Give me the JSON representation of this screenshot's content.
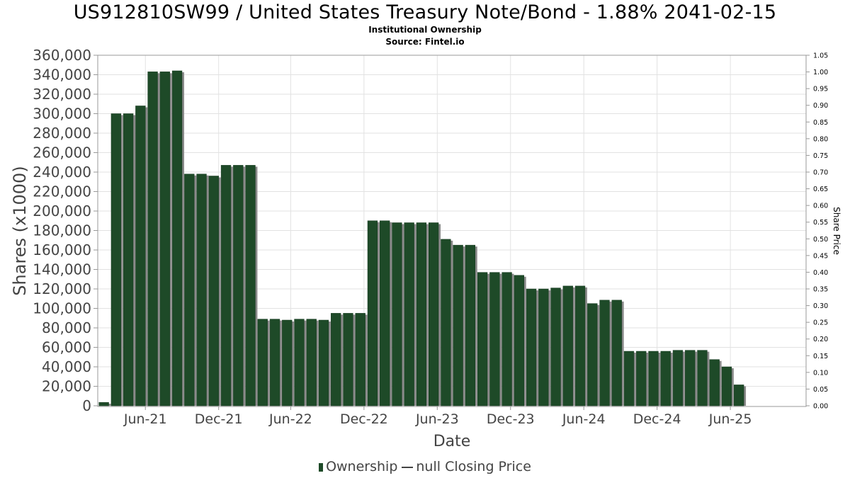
{
  "chart_data": {
    "type": "bar",
    "title": "US912810SW99 / United States Treasury Note/Bond - 1.88% 2041-02-15",
    "subtitle_lines": [
      "Institutional Ownership",
      "Source: Fintel.io"
    ],
    "xlabel": "Date",
    "ylabel": "Shares (x1000)",
    "y2label": "Share Price",
    "ylim": [
      0,
      360000
    ],
    "y2lim": [
      0,
      1.05
    ],
    "yticks": [
      "0",
      "20,000",
      "40,000",
      "60,000",
      "80,000",
      "100,000",
      "120,000",
      "140,000",
      "160,000",
      "180,000",
      "200,000",
      "220,000",
      "240,000",
      "260,000",
      "280,000",
      "300,000",
      "320,000",
      "340,000",
      "360,000"
    ],
    "y2ticks": [
      "0.00",
      "0.05",
      "0.10",
      "0.15",
      "0.20",
      "0.25",
      "0.30",
      "0.35",
      "0.40",
      "0.45",
      "0.50",
      "0.55",
      "0.60",
      "0.65",
      "0.70",
      "0.75",
      "0.80",
      "0.85",
      "0.90",
      "0.95",
      "1.00",
      "1.05"
    ],
    "x_ticks": [
      {
        "label": "Jun-21",
        "x": 3.9
      },
      {
        "label": "Dec-21",
        "x": 9.9
      },
      {
        "label": "Jun-22",
        "x": 15.8
      },
      {
        "label": "Dec-22",
        "x": 21.8
      },
      {
        "label": "Jun-23",
        "x": 27.8
      },
      {
        "label": "Dec-23",
        "x": 33.8
      },
      {
        "label": "Jun-24",
        "x": 39.8
      },
      {
        "label": "Dec-24",
        "x": 45.8
      },
      {
        "label": "Jun-25",
        "x": 51.8
      }
    ],
    "x_range": [
      0,
      58
    ],
    "grid": true,
    "legend_position": "bottom",
    "series": [
      {
        "name": "Ownership",
        "color": "#1e4a28",
        "values": [
          3500,
          300000,
          300000,
          308000,
          343000,
          343000,
          344000,
          238000,
          238000,
          236000,
          247000,
          247000,
          247000,
          89000,
          89000,
          88000,
          89000,
          89000,
          88000,
          95000,
          95000,
          95000,
          190000,
          190000,
          188000,
          188000,
          188000,
          188000,
          171000,
          165000,
          165000,
          137000,
          137000,
          137000,
          134000,
          120000,
          120000,
          121000,
          123000,
          123000,
          105000,
          108500,
          108500,
          56000,
          56000,
          56000,
          56000,
          57000,
          57000,
          57000,
          47500,
          40000,
          21500
        ]
      },
      {
        "name": "null Closing Price",
        "color": "#444444",
        "values": []
      }
    ]
  }
}
